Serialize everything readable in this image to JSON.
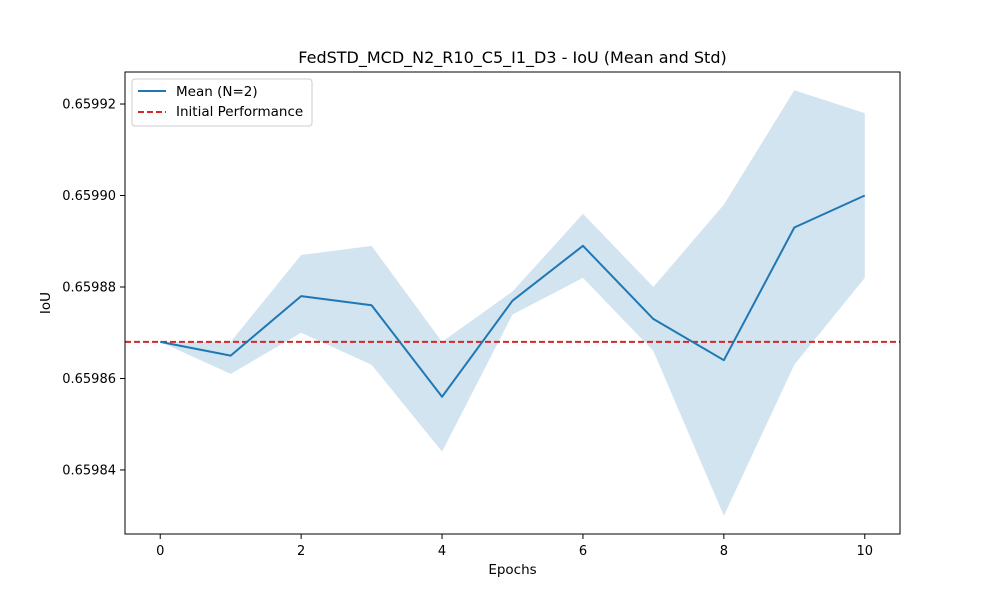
{
  "chart_data": {
    "type": "line",
    "title": "FedSTD_MCD_N2_R10_C5_I1_D3 - IoU (Mean and Std)",
    "xlabel": "Epochs",
    "ylabel": "IoU",
    "xlim": [
      -0.5,
      10.5
    ],
    "ylim": [
      0.659826,
      0.659927
    ],
    "x_ticks": [
      0,
      2,
      4,
      6,
      8,
      10
    ],
    "x_tick_labels": [
      "0",
      "2",
      "4",
      "6",
      "8",
      "10"
    ],
    "y_ticks": [
      0.65984,
      0.65986,
      0.65988,
      0.6599,
      0.65992
    ],
    "y_tick_labels": [
      "0.65984",
      "0.65986",
      "0.65988",
      "0.65990",
      "0.65992"
    ],
    "grid": false,
    "legend_position": "upper-left",
    "x": [
      0,
      1,
      2,
      3,
      4,
      5,
      6,
      7,
      8,
      9,
      10
    ],
    "series": [
      {
        "name": "Mean (N=2)",
        "color": "#1f77b4",
        "style": "solid",
        "values": [
          0.659868,
          0.659865,
          0.659878,
          0.659876,
          0.659856,
          0.659877,
          0.659889,
          0.659873,
          0.659864,
          0.659893,
          0.6599
        ]
      }
    ],
    "std_band": {
      "color": "#1f77b4",
      "opacity": 0.2,
      "lower": [
        0.659868,
        0.659861,
        0.65987,
        0.659863,
        0.659844,
        0.659874,
        0.659882,
        0.659866,
        0.65983,
        0.659863,
        0.659882
      ],
      "upper": [
        0.659868,
        0.659868,
        0.659887,
        0.659889,
        0.659868,
        0.659879,
        0.659896,
        0.65988,
        0.659898,
        0.659923,
        0.659918
      ]
    },
    "reference_line": {
      "name": "Initial Performance",
      "value": 0.659868,
      "color": "#d62728",
      "style": "dashed"
    }
  }
}
